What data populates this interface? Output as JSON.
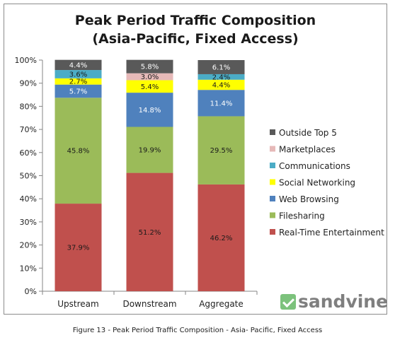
{
  "caption": "Figure 13 - Peak Period Traffic Composition - Asia- Pacific, Fixed Access",
  "logo": {
    "text": "sandvine",
    "icon": "sandvine-check-icon"
  },
  "chart_data": {
    "type": "bar",
    "stacked": true,
    "title_lines": [
      "Peak Period Traffic Composition",
      "(Asia-Pacific, Fixed Access)"
    ],
    "xlabel": "",
    "ylabel": "",
    "ylim": [
      0,
      100
    ],
    "yticks": [
      "0%",
      "10%",
      "20%",
      "30%",
      "40%",
      "50%",
      "60%",
      "70%",
      "80%",
      "90%",
      "100%"
    ],
    "categories": [
      "Upstream",
      "Downstream",
      "Aggregate"
    ],
    "legend_position": "right",
    "series": [
      {
        "name": "Real-Time Entertainment",
        "color": "#c0504d",
        "values": [
          37.9,
          51.2,
          46.2
        ],
        "labels": [
          "37.9%",
          "51.2%",
          "46.2%"
        ]
      },
      {
        "name": "Filesharing",
        "color": "#9bbb59",
        "values": [
          45.8,
          19.9,
          29.5
        ],
        "labels": [
          "45.8%",
          "19.9%",
          "29.5%"
        ]
      },
      {
        "name": "Web Browsing",
        "color": "#4f81bd",
        "values": [
          5.7,
          14.8,
          11.4
        ],
        "labels": [
          "5.7%",
          "14.8%",
          "11.4%"
        ]
      },
      {
        "name": "Social Networking",
        "color": "#ffff00",
        "values": [
          2.7,
          5.4,
          4.4
        ],
        "labels": [
          "2.7%",
          "5.4%",
          "4.4%"
        ]
      },
      {
        "name": "Communications",
        "color": "#4bacc6",
        "values": [
          3.6,
          0.0,
          2.4
        ],
        "labels": [
          "3.6%",
          "",
          "2.4%"
        ]
      },
      {
        "name": "Marketplaces",
        "color": "#e6b9b8",
        "values": [
          0.0,
          3.0,
          0.0
        ],
        "labels": [
          "",
          "3.0%",
          ""
        ]
      },
      {
        "name": "Outside Top 5",
        "color": "#595959",
        "values": [
          4.4,
          5.8,
          6.1
        ],
        "labels": [
          "4.4%",
          "5.8%",
          "6.1%"
        ]
      }
    ]
  }
}
